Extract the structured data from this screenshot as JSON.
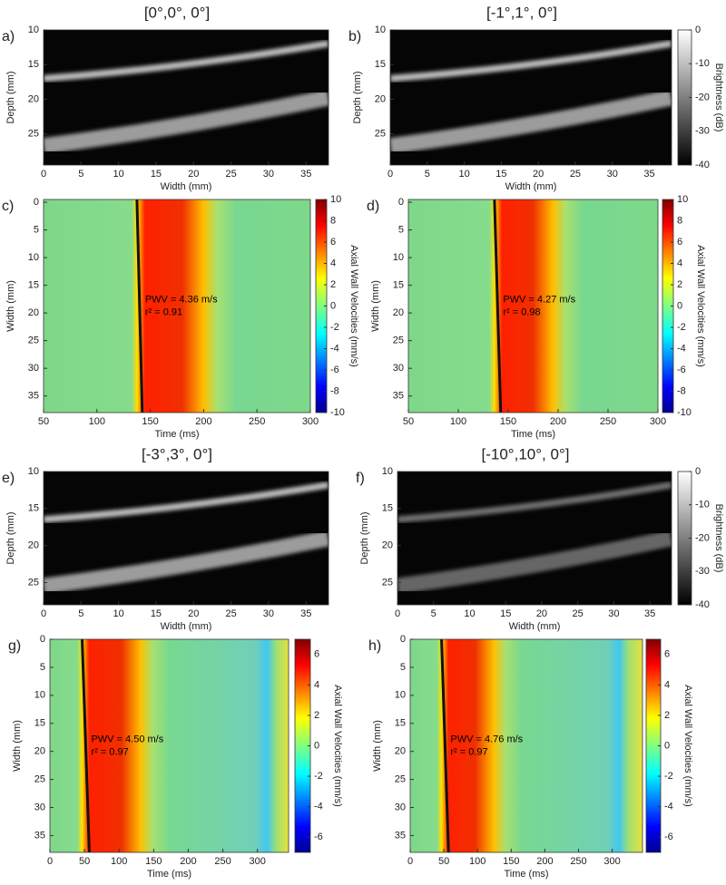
{
  "chart_data": [
    {
      "type": "image",
      "panel": "a)",
      "title": "[0°,0°, 0°]",
      "xlabel": "Width (mm)",
      "ylabel": "Depth (mm)",
      "xlim": [
        0,
        38
      ],
      "xticks": [
        0,
        5,
        10,
        15,
        20,
        25,
        30,
        35
      ],
      "ylim": [
        10,
        29.5
      ],
      "yticks": [
        10,
        15,
        20,
        25
      ],
      "yreverse": true
    },
    {
      "type": "image",
      "panel": "b)",
      "title": "[-1°,1°, 0°]",
      "xlabel": "Width (mm)",
      "ylabel": "Depth (mm)",
      "xlim": [
        0,
        38
      ],
      "xticks": [
        0,
        5,
        10,
        15,
        20,
        25,
        30,
        35
      ],
      "ylim": [
        10,
        29.5
      ],
      "yticks": [
        10,
        15,
        20,
        25
      ],
      "yreverse": true,
      "colorbar": {
        "label": "Brightness (dB)",
        "lim": [
          -40,
          0
        ],
        "ticks": [
          0,
          -10,
          -20,
          -30,
          -40
        ],
        "colormap": "gray"
      }
    },
    {
      "type": "heatmap",
      "panel": "c)",
      "xlabel": "Time (ms)",
      "ylabel": "Width (mm)",
      "xlim": [
        50,
        300
      ],
      "xticks": [
        50,
        100,
        150,
        200,
        250,
        300
      ],
      "ylim": [
        -0.5,
        38
      ],
      "yticks": [
        0,
        5,
        10,
        15,
        20,
        25,
        30,
        35
      ],
      "yreverse": true,
      "annotations": [
        "PWV = 4.36 m/s",
        "r² = 0.91"
      ],
      "colorbar": {
        "label": "Axial Wall Velocities (mm/s)",
        "lim": [
          -10,
          10
        ],
        "ticks": [
          10,
          8,
          6,
          4,
          2,
          0,
          -2,
          -4,
          -6,
          -8,
          -10
        ],
        "colormap": "jet"
      }
    },
    {
      "type": "heatmap",
      "panel": "d)",
      "xlabel": "Time (ms)",
      "ylabel": "Width (mm)",
      "xlim": [
        50,
        300
      ],
      "xticks": [
        50,
        100,
        150,
        200,
        250,
        300
      ],
      "ylim": [
        -0.5,
        38
      ],
      "yticks": [
        0,
        5,
        10,
        15,
        20,
        25,
        30,
        35
      ],
      "yreverse": true,
      "annotations": [
        "PWV = 4.27 m/s",
        "r² = 0.98"
      ],
      "colorbar": {
        "label": "Axial Wall Velocities (mm/s)",
        "lim": [
          -10,
          10
        ],
        "ticks": [
          10,
          8,
          6,
          4,
          2,
          0,
          -2,
          -4,
          -6,
          -8,
          -10
        ],
        "colormap": "jet"
      }
    },
    {
      "type": "image",
      "panel": "e)",
      "title": "[-3°,3°, 0°]",
      "xlabel": "Width (mm)",
      "ylabel": "Depth (mm)",
      "xlim": [
        0,
        38
      ],
      "xticks": [
        0,
        5,
        10,
        15,
        20,
        25,
        30,
        35
      ],
      "ylim": [
        10,
        28
      ],
      "yticks": [
        10,
        15,
        20,
        25
      ],
      "yreverse": true
    },
    {
      "type": "image",
      "panel": "f)",
      "title": "[-10°,10°, 0°]",
      "xlabel": "Width (mm)",
      "ylabel": "Depth (mm)",
      "xlim": [
        0,
        38
      ],
      "xticks": [
        0,
        5,
        10,
        15,
        20,
        25,
        30,
        35
      ],
      "ylim": [
        10,
        28
      ],
      "yticks": [
        10,
        15,
        20,
        25
      ],
      "yreverse": true,
      "colorbar": {
        "label": "Brightness (dB)",
        "lim": [
          -40,
          0
        ],
        "ticks": [
          0,
          -10,
          -20,
          -30,
          -40
        ],
        "colormap": "gray"
      }
    },
    {
      "type": "heatmap",
      "panel": "g)",
      "xlabel": "Time (ms)",
      "ylabel": "Width (mm)",
      "xlim": [
        0,
        345
      ],
      "xticks": [
        0,
        50,
        100,
        150,
        200,
        250,
        300
      ],
      "ylim": [
        0,
        38
      ],
      "yticks": [
        0,
        5,
        10,
        15,
        20,
        25,
        30,
        35
      ],
      "yreverse": true,
      "annotations": [
        "PWV = 4.50 m/s",
        "r² = 0.97"
      ],
      "colorbar": {
        "label": "Axial Wall Velocities (mm/s)",
        "lim": [
          -7,
          7
        ],
        "ticks": [
          6,
          4,
          2,
          0,
          -2,
          -4,
          -6
        ],
        "colormap": "jet"
      }
    },
    {
      "type": "heatmap",
      "panel": "h)",
      "xlabel": "Time (ms)",
      "ylabel": "Width (mm)",
      "xlim": [
        0,
        345
      ],
      "xticks": [
        0,
        50,
        100,
        150,
        200,
        250,
        300
      ],
      "ylim": [
        0,
        38
      ],
      "yticks": [
        0,
        5,
        10,
        15,
        20,
        25,
        30,
        35
      ],
      "yreverse": true,
      "annotations": [
        "PWV = 4.76 m/s",
        "r² = 0.97"
      ],
      "colorbar": {
        "label": "Axial Wall Velocities (mm/s)",
        "lim": [
          -7,
          7
        ],
        "ticks": [
          6,
          4,
          2,
          0,
          -2,
          -4,
          -6
        ],
        "colormap": "jet"
      }
    }
  ]
}
